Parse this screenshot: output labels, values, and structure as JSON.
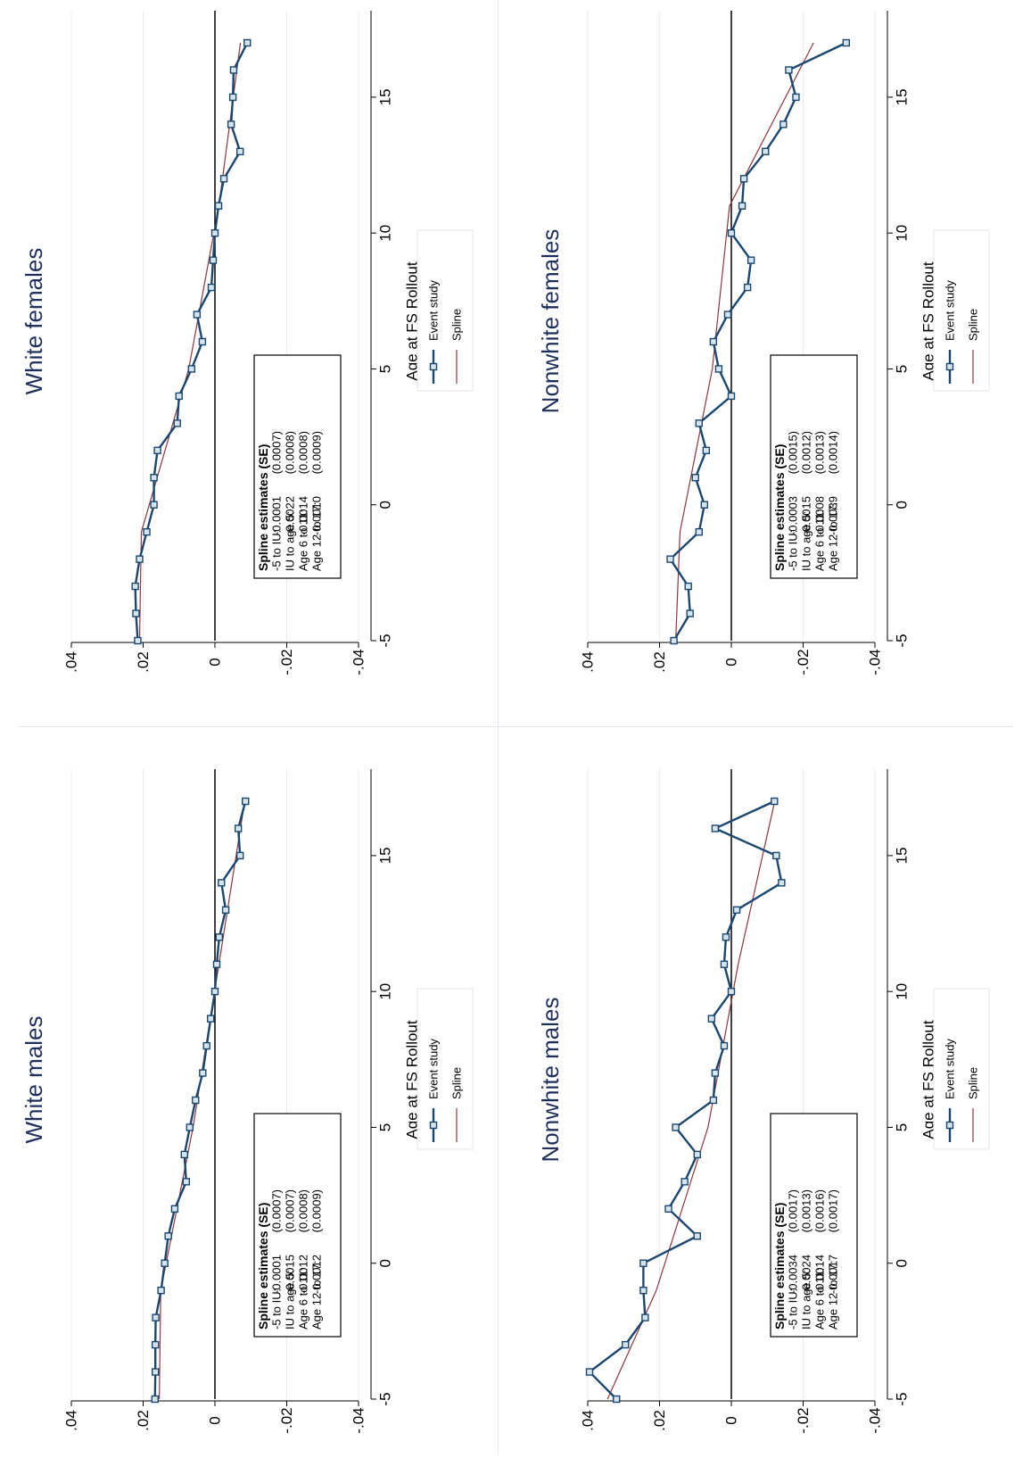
{
  "chart_data": [
    {
      "type": "line",
      "title": "White males",
      "xlabel": "Age at FS Rollout",
      "ylabel": "",
      "xlim": [
        -5,
        17
      ],
      "ylim": [
        -0.04,
        0.04
      ],
      "x_ticks": [
        -5,
        0,
        5,
        10,
        15
      ],
      "x_tick_labels": [
        "-5",
        "0",
        "5",
        "10",
        "15"
      ],
      "y_ticks": [
        0.04,
        0.02,
        0,
        -0.02,
        -0.04
      ],
      "y_tick_labels": [
        ".04",
        ".02",
        "0",
        "-.02",
        "-.04"
      ],
      "legend": [
        "Event study",
        "Spline"
      ],
      "box_title": "Spline estimates (SE)",
      "box_rows": [
        {
          "label": "-5 to IU:",
          "est": "-0.0001",
          "se": "(0.0007)"
        },
        {
          "label": "IU to age 5:",
          "est": "-0.0015",
          "se": "(0.0007)"
        },
        {
          "label": "Age 6 to 11:",
          "est": "-0.0012",
          "se": "(0.0008)"
        },
        {
          "label": "Age 12 to 17:",
          "est": "-0.0012",
          "se": "(0.0009)"
        }
      ],
      "series": [
        {
          "name": "Event study",
          "x": [
            -5,
            -4,
            -3,
            -2,
            -1,
            0,
            1,
            2,
            3,
            4,
            5,
            6,
            7,
            8,
            9,
            10,
            11,
            12,
            13,
            14,
            15,
            16,
            17
          ],
          "y": [
            0.0167,
            0.0166,
            0.0166,
            0.0165,
            0.015,
            0.014,
            0.013,
            0.0112,
            0.008,
            0.0085,
            0.007,
            0.0054,
            0.0034,
            0.0023,
            0.0012,
            0,
            -0.0005,
            -0.0012,
            -0.003,
            -0.0018,
            -0.007,
            -0.0065,
            -0.0085
          ]
        },
        {
          "name": "Spline",
          "x": [
            -5,
            -1,
            5,
            11,
            17
          ],
          "y": [
            0.0155,
            0.0151,
            0.0061,
            -0.0011,
            -0.0083
          ]
        }
      ],
      "colors": {
        "event": "#1a476f",
        "spline": "#90353b"
      }
    },
    {
      "type": "line",
      "title": "White females",
      "xlabel": "Age at FS Rollout",
      "ylabel": "",
      "xlim": [
        -5,
        17
      ],
      "ylim": [
        -0.04,
        0.04
      ],
      "x_ticks": [
        -5,
        0,
        5,
        10,
        15
      ],
      "x_tick_labels": [
        "-5",
        "0",
        "5",
        "10",
        "15"
      ],
      "y_ticks": [
        0.04,
        0.02,
        0,
        -0.02,
        -0.04
      ],
      "y_tick_labels": [
        ".04",
        ".02",
        "0",
        "-.02",
        "-.04"
      ],
      "legend": [
        "Event study",
        "Spline"
      ],
      "box_title": "Spline estimates (SE)",
      "box_rows": [
        {
          "label": "-5 to IU:",
          "est": "-0.0001",
          "se": "(0.0007)"
        },
        {
          "label": "IU to age 5:",
          "est": "-0.0022",
          "se": "(0.0008)"
        },
        {
          "label": "Age 6 to 11:",
          "est": "-0.0014",
          "se": "(0.0008)"
        },
        {
          "label": "Age 12 to 17:",
          "est": "-0.0010",
          "se": "(0.0009)"
        }
      ],
      "series": [
        {
          "name": "Event study",
          "x": [
            -5,
            -4,
            -3,
            -2,
            -1,
            0,
            1,
            2,
            3,
            4,
            5,
            6,
            7,
            8,
            9,
            10,
            11,
            12,
            13,
            14,
            15,
            16,
            17
          ],
          "y": [
            0.0215,
            0.022,
            0.0222,
            0.021,
            0.019,
            0.017,
            0.017,
            0.016,
            0.0105,
            0.01,
            0.0065,
            0.0035,
            0.005,
            0.001,
            0.0005,
            0,
            -0.001,
            -0.0025,
            -0.007,
            -0.0045,
            -0.005,
            -0.0052,
            -0.009
          ]
        },
        {
          "name": "Spline",
          "x": [
            -5,
            -1,
            5,
            11,
            17
          ],
          "y": [
            0.021,
            0.0205,
            0.0073,
            -0.0011,
            -0.0071
          ]
        }
      ],
      "colors": {
        "event": "#1a476f",
        "spline": "#90353b"
      }
    },
    {
      "type": "line",
      "title": "Nonwhite males",
      "xlabel": "Age at FS Rollout",
      "ylabel": "",
      "xlim": [
        -5,
        17
      ],
      "ylim": [
        -0.04,
        0.04
      ],
      "x_ticks": [
        -5,
        0,
        5,
        10,
        15
      ],
      "x_tick_labels": [
        "-5",
        "0",
        "5",
        "10",
        "15"
      ],
      "y_ticks": [
        0.04,
        0.02,
        0,
        -0.02,
        -0.04
      ],
      "y_tick_labels": [
        ".04",
        ".02",
        "0",
        "-.02",
        "-.04"
      ],
      "legend": [
        "Event study",
        "Spline"
      ],
      "box_title": "Spline estimates (SE)",
      "box_rows": [
        {
          "label": "-5 to IU:",
          "est": "-0.0034",
          "se": "(0.0017)"
        },
        {
          "label": "IU to age 5:",
          "est": "-0.0024",
          "se": "(0.0013)"
        },
        {
          "label": "Age 6 to 11:",
          "est": "-0.0014",
          "se": "(0.0016)"
        },
        {
          "label": "Age 12 to 17:",
          "est": "-0.0017",
          "se": "(0.0017)"
        }
      ],
      "series": [
        {
          "name": "Event study",
          "x": [
            -5,
            -4,
            -3,
            -2,
            -1,
            0,
            1,
            2,
            3,
            4,
            5,
            6,
            7,
            8,
            9,
            10,
            11,
            12,
            13,
            14,
            15,
            16,
            17
          ],
          "y": [
            0.032,
            0.0395,
            0.0295,
            0.024,
            0.0245,
            0.0245,
            0.0095,
            0.0175,
            0.013,
            0.0095,
            0.0155,
            0.005,
            0.0045,
            0.002,
            0.0055,
            0,
            0.002,
            0.0015,
            -0.0015,
            -0.014,
            -0.0125,
            0.0045,
            -0.012
          ]
        },
        {
          "name": "Spline",
          "x": [
            -5,
            -1,
            5,
            11,
            17
          ],
          "y": [
            0.0345,
            0.0209,
            0.0065,
            -0.0019,
            -0.0121
          ]
        }
      ],
      "colors": {
        "event": "#1a476f",
        "spline": "#90353b"
      }
    },
    {
      "type": "line",
      "title": "Nonwhite females",
      "xlabel": "Age at FS Rollout",
      "ylabel": "",
      "xlim": [
        -5,
        17
      ],
      "ylim": [
        -0.04,
        0.04
      ],
      "x_ticks": [
        -5,
        0,
        5,
        10,
        15
      ],
      "x_tick_labels": [
        "-5",
        "0",
        "5",
        "10",
        "15"
      ],
      "y_ticks": [
        0.04,
        0.02,
        0,
        -0.02,
        -0.04
      ],
      "y_tick_labels": [
        ".04",
        ".02",
        "0",
        "-.02",
        "-.04"
      ],
      "legend": [
        "Event study",
        "Spline"
      ],
      "box_title": "Spline estimates (SE)",
      "box_rows": [
        {
          "label": "-5 to IU:",
          "est": "-0.0003",
          "se": "(0.0015)"
        },
        {
          "label": "IU to age 5:",
          "est": "-0.0015",
          "se": "(0.0012)"
        },
        {
          "label": "Age 6 to 11:",
          "est": "-0.0008",
          "se": "(0.0013)"
        },
        {
          "label": "Age 12 to 17:",
          "est": "-0.0039",
          "se": "(0.0014)"
        }
      ],
      "series": [
        {
          "name": "Event study",
          "x": [
            -5,
            -4,
            -3,
            -2,
            -1,
            0,
            1,
            2,
            3,
            4,
            5,
            6,
            7,
            8,
            9,
            10,
            11,
            12,
            13,
            14,
            15,
            16,
            17
          ],
          "y": [
            0.016,
            0.0115,
            0.012,
            0.017,
            0.009,
            0.0075,
            0.01,
            0.007,
            0.009,
            0,
            0.0035,
            0.005,
            0.001,
            -0.0045,
            -0.0055,
            0,
            -0.003,
            -0.0035,
            -0.0095,
            -0.0145,
            -0.018,
            -0.016,
            -0.032
          ]
        },
        {
          "name": "Spline",
          "x": [
            -5,
            -1,
            5,
            11,
            17
          ],
          "y": [
            0.0155,
            0.0143,
            0.0053,
            0.0005,
            -0.0229
          ]
        }
      ],
      "colors": {
        "event": "#1a476f",
        "spline": "#90353b"
      }
    }
  ]
}
